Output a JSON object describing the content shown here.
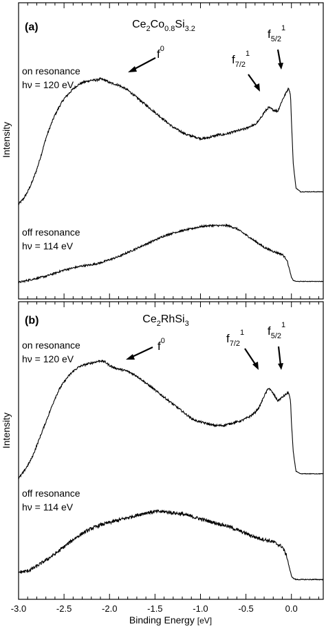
{
  "chart_data": [
    {
      "type": "line",
      "panel_label": "(a)",
      "title": {
        "pre": "Ce",
        "s1": "2",
        "mid": "Co",
        "s2": "0.8",
        "mid2": "Si",
        "s3": "3.2"
      },
      "ylabel": "Intensity",
      "xlim": [
        -3.0,
        0.35
      ],
      "grid": false,
      "series": [
        {
          "name": "on resonance",
          "label_line1": "on resonance",
          "label_line2": "hν = 120 eV",
          "x": [
            -3.0,
            -2.95,
            -2.9,
            -2.85,
            -2.8,
            -2.75,
            -2.7,
            -2.65,
            -2.6,
            -2.55,
            -2.5,
            -2.45,
            -2.4,
            -2.35,
            -2.3,
            -2.25,
            -2.2,
            -2.15,
            -2.1,
            -2.05,
            -2.0,
            -1.95,
            -1.9,
            -1.85,
            -1.8,
            -1.75,
            -1.7,
            -1.65,
            -1.6,
            -1.55,
            -1.5,
            -1.45,
            -1.4,
            -1.35,
            -1.3,
            -1.25,
            -1.2,
            -1.15,
            -1.1,
            -1.05,
            -1.0,
            -0.95,
            -0.9,
            -0.85,
            -0.8,
            -0.75,
            -0.7,
            -0.65,
            -0.6,
            -0.55,
            -0.5,
            -0.45,
            -0.4,
            -0.35,
            -0.3,
            -0.25,
            -0.2,
            -0.15,
            -0.1,
            -0.05,
            -0.03,
            -0.01,
            0.0,
            0.02,
            0.05,
            0.1,
            0.15,
            0.2,
            0.25,
            0.3,
            0.35
          ],
          "y": [
            0.02,
            0.06,
            0.12,
            0.2,
            0.3,
            0.42,
            0.55,
            0.65,
            0.74,
            0.81,
            0.87,
            0.91,
            0.95,
            0.98,
            1.0,
            1.01,
            1.02,
            1.02,
            1.03,
            1.02,
            1.0,
            0.99,
            0.98,
            0.96,
            0.94,
            0.91,
            0.88,
            0.85,
            0.82,
            0.79,
            0.76,
            0.73,
            0.7,
            0.67,
            0.64,
            0.62,
            0.6,
            0.58,
            0.57,
            0.56,
            0.55,
            0.55,
            0.56,
            0.57,
            0.58,
            0.58,
            0.59,
            0.6,
            0.61,
            0.62,
            0.63,
            0.65,
            0.66,
            0.7,
            0.76,
            0.8,
            0.78,
            0.77,
            0.86,
            0.93,
            0.96,
            0.9,
            0.7,
            0.35,
            0.15,
            0.12,
            0.12,
            0.12,
            0.12,
            0.12,
            0.12
          ]
        },
        {
          "name": "off resonance",
          "label_line1": "off resonance",
          "label_line2": "hν = 114 eV",
          "x": [
            -3.0,
            -2.9,
            -2.8,
            -2.7,
            -2.6,
            -2.5,
            -2.4,
            -2.3,
            -2.2,
            -2.1,
            -2.0,
            -1.9,
            -1.8,
            -1.7,
            -1.6,
            -1.5,
            -1.4,
            -1.3,
            -1.2,
            -1.1,
            -1.0,
            -0.9,
            -0.8,
            -0.7,
            -0.6,
            -0.5,
            -0.4,
            -0.3,
            -0.2,
            -0.1,
            -0.05,
            -0.02,
            0.0,
            0.02,
            0.05,
            0.1,
            0.2,
            0.3,
            0.35
          ],
          "y": [
            0.0,
            0.02,
            0.04,
            0.06,
            0.09,
            0.12,
            0.14,
            0.16,
            0.17,
            0.19,
            0.22,
            0.25,
            0.29,
            0.33,
            0.37,
            0.41,
            0.45,
            0.48,
            0.5,
            0.52,
            0.54,
            0.55,
            0.55,
            0.55,
            0.52,
            0.46,
            0.4,
            0.34,
            0.3,
            0.27,
            0.22,
            0.12,
            0.05,
            0.02,
            0.01,
            0.01,
            0.01,
            0.01,
            0.01
          ]
        }
      ],
      "annotations": [
        {
          "id": "f0",
          "main": "f",
          "sup": "0",
          "sub": "",
          "target_x": -1.8,
          "target_y": 1.03
        },
        {
          "id": "f72",
          "main": "f",
          "sub": "7/2",
          "sup": "1",
          "target_x": -0.3,
          "target_y": 0.83
        },
        {
          "id": "f52",
          "main": "f",
          "sub": "5/2",
          "sup": "1",
          "target_x": -0.05,
          "target_y": 1.02
        }
      ]
    },
    {
      "type": "line",
      "panel_label": "(b)",
      "title": {
        "pre": "Ce",
        "s1": "2",
        "mid": "RhSi",
        "s2": "3"
      },
      "ylabel": "Intensity",
      "xlim": [
        -3.0,
        0.35
      ],
      "grid": false,
      "xlabel": "Binding Energy [eV]",
      "xlabel_parts": {
        "main": "Binding Energy ",
        "unit": "[eV]"
      },
      "xticks": [
        -3.0,
        -2.5,
        -2.0,
        -1.5,
        -1.0,
        -0.5,
        0.0
      ],
      "xtick_labels": [
        "-3.0",
        "-2.5",
        "-2.0",
        "-1.5",
        "-1.0",
        "-0.5",
        "0.0"
      ],
      "series": [
        {
          "name": "on resonance",
          "label_line1": "on resonance",
          "label_line2": "hν = 120 eV",
          "x": [
            -3.0,
            -2.95,
            -2.9,
            -2.85,
            -2.8,
            -2.75,
            -2.7,
            -2.65,
            -2.6,
            -2.55,
            -2.5,
            -2.45,
            -2.4,
            -2.35,
            -2.3,
            -2.25,
            -2.2,
            -2.15,
            -2.1,
            -2.05,
            -2.0,
            -1.95,
            -1.9,
            -1.85,
            -1.8,
            -1.75,
            -1.7,
            -1.65,
            -1.6,
            -1.55,
            -1.5,
            -1.45,
            -1.4,
            -1.35,
            -1.3,
            -1.25,
            -1.2,
            -1.15,
            -1.1,
            -1.05,
            -1.0,
            -0.95,
            -0.9,
            -0.85,
            -0.8,
            -0.75,
            -0.7,
            -0.65,
            -0.6,
            -0.55,
            -0.5,
            -0.45,
            -0.4,
            -0.35,
            -0.3,
            -0.25,
            -0.2,
            -0.15,
            -0.1,
            -0.05,
            -0.03,
            -0.01,
            0.0,
            0.02,
            0.05,
            0.1,
            0.15,
            0.2,
            0.25,
            0.3,
            0.35
          ],
          "y": [
            0.02,
            0.07,
            0.13,
            0.2,
            0.3,
            0.4,
            0.5,
            0.6,
            0.7,
            0.78,
            0.84,
            0.89,
            0.93,
            0.96,
            0.98,
            0.99,
            1.0,
            1.01,
            1.02,
            1.01,
            0.98,
            0.96,
            0.95,
            0.94,
            0.93,
            0.91,
            0.89,
            0.86,
            0.83,
            0.8,
            0.77,
            0.74,
            0.71,
            0.68,
            0.65,
            0.62,
            0.59,
            0.56,
            0.53,
            0.51,
            0.5,
            0.49,
            0.48,
            0.47,
            0.47,
            0.47,
            0.48,
            0.49,
            0.5,
            0.51,
            0.53,
            0.55,
            0.58,
            0.63,
            0.72,
            0.79,
            0.74,
            0.68,
            0.71,
            0.74,
            0.75,
            0.68,
            0.5,
            0.25,
            0.08,
            0.06,
            0.06,
            0.06,
            0.06,
            0.06,
            0.06
          ]
        },
        {
          "name": "off resonance",
          "label_line1": "off resonance",
          "label_line2": "hν = 114 eV",
          "x": [
            -3.0,
            -2.9,
            -2.8,
            -2.7,
            -2.6,
            -2.5,
            -2.4,
            -2.3,
            -2.2,
            -2.1,
            -2.0,
            -1.9,
            -1.8,
            -1.7,
            -1.6,
            -1.5,
            -1.4,
            -1.3,
            -1.2,
            -1.1,
            -1.0,
            -0.9,
            -0.8,
            -0.7,
            -0.6,
            -0.5,
            -0.4,
            -0.3,
            -0.2,
            -0.1,
            -0.05,
            -0.02,
            0.0,
            0.02,
            0.05,
            0.1,
            0.2,
            0.3,
            0.35
          ],
          "y": [
            0.03,
            0.04,
            0.08,
            0.13,
            0.18,
            0.24,
            0.3,
            0.35,
            0.39,
            0.42,
            0.44,
            0.46,
            0.48,
            0.5,
            0.52,
            0.53,
            0.53,
            0.52,
            0.51,
            0.49,
            0.47,
            0.45,
            0.43,
            0.41,
            0.38,
            0.35,
            0.32,
            0.3,
            0.28,
            0.24,
            0.16,
            0.06,
            0.0,
            -0.02,
            -0.03,
            -0.03,
            -0.03,
            -0.03,
            -0.03
          ]
        }
      ],
      "annotations": [
        {
          "id": "f0",
          "main": "f",
          "sup": "0",
          "sub": "",
          "target_x": -1.85,
          "target_y": 1.03
        },
        {
          "id": "f72",
          "main": "f",
          "sub": "7/2",
          "sup": "1",
          "target_x": -0.22,
          "target_y": 0.8
        },
        {
          "id": "f52",
          "main": "f",
          "sub": "5/2",
          "sup": "1",
          "target_x": -0.05,
          "target_y": 0.76
        }
      ]
    }
  ]
}
